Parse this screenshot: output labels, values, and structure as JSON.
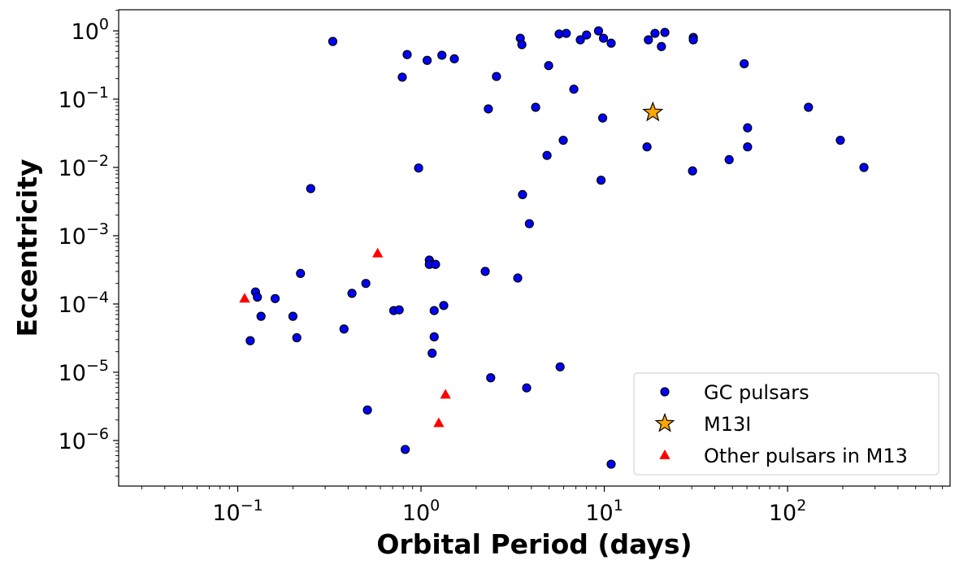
{
  "chart_data": {
    "type": "scatter",
    "title": "",
    "xlabel": "Orbital Period (days)",
    "ylabel": "Eccentricity",
    "xscale": "log",
    "yscale": "log",
    "xlim": [
      0.0224,
      770
    ],
    "ylim": [
      2.15e-07,
      2.04
    ],
    "x_ticks": [
      {
        "v": 0.1,
        "base": "10",
        "exp": "−1"
      },
      {
        "v": 1,
        "base": "10",
        "exp": "0"
      },
      {
        "v": 10,
        "base": "10",
        "exp": "1"
      },
      {
        "v": 100,
        "base": "10",
        "exp": "2"
      }
    ],
    "y_ticks": [
      {
        "v": 1e-06,
        "base": "10",
        "exp": "−6"
      },
      {
        "v": 1e-05,
        "base": "10",
        "exp": "−5"
      },
      {
        "v": 0.0001,
        "base": "10",
        "exp": "−4"
      },
      {
        "v": 0.001,
        "base": "10",
        "exp": "−3"
      },
      {
        "v": 0.01,
        "base": "10",
        "exp": "−2"
      },
      {
        "v": 0.1,
        "base": "10",
        "exp": "−1"
      },
      {
        "v": 1,
        "base": "10",
        "exp": "0"
      }
    ],
    "grid": false,
    "legend_position": "bottom-right",
    "series": [
      {
        "name": "GC pulsars",
        "marker": "circle",
        "color": "#0000ff",
        "edge": "#000000",
        "points": [
          [
            0.33,
            0.7
          ],
          [
            0.84,
            0.45
          ],
          [
            0.79,
            0.21
          ],
          [
            1.08,
            0.37
          ],
          [
            1.3,
            0.44
          ],
          [
            1.52,
            0.39
          ],
          [
            2.58,
            0.215
          ],
          [
            2.33,
            0.072
          ],
          [
            3.48,
            0.78
          ],
          [
            3.55,
            0.63
          ],
          [
            4.97,
            0.31
          ],
          [
            4.22,
            0.076
          ],
          [
            6.82,
            0.14
          ],
          [
            5.67,
            0.9
          ],
          [
            6.2,
            0.92
          ],
          [
            7.4,
            0.74
          ],
          [
            8.0,
            0.87
          ],
          [
            9.3,
            1.0
          ],
          [
            9.9,
            0.78
          ],
          [
            10.9,
            0.66
          ],
          [
            9.8,
            0.053
          ],
          [
            5.97,
            0.025
          ],
          [
            4.87,
            0.015
          ],
          [
            0.97,
            0.0098
          ],
          [
            0.25,
            0.0049
          ],
          [
            9.6,
            0.0065
          ],
          [
            3.58,
            0.004
          ],
          [
            3.9,
            0.0015
          ],
          [
            17.4,
            0.74
          ],
          [
            18.9,
            0.92
          ],
          [
            21.4,
            0.95
          ],
          [
            20.5,
            0.59
          ],
          [
            30.6,
            0.8
          ],
          [
            30.6,
            0.74
          ],
          [
            17.1,
            0.02
          ],
          [
            30.3,
            0.0089
          ],
          [
            58,
            0.33
          ],
          [
            60.5,
            0.038
          ],
          [
            60.5,
            0.02
          ],
          [
            48,
            0.013
          ],
          [
            130,
            0.076
          ],
          [
            194,
            0.025
          ],
          [
            261,
            0.01
          ],
          [
            0.117,
            2.9e-05
          ],
          [
            0.125,
            0.00015
          ],
          [
            0.128,
            0.000126
          ],
          [
            0.134,
            6.6e-05
          ],
          [
            0.16,
            0.00012
          ],
          [
            0.2,
            6.6e-05
          ],
          [
            0.21,
            3.2e-05
          ],
          [
            0.22,
            0.00028
          ],
          [
            0.38,
            4.3e-05
          ],
          [
            0.42,
            0.000143
          ],
          [
            0.5,
            0.0002
          ],
          [
            0.71,
            8e-05
          ],
          [
            0.76,
            8.2e-05
          ],
          [
            1.11,
            0.00044
          ],
          [
            1.11,
            0.00038
          ],
          [
            1.2,
            0.00038
          ],
          [
            1.18,
            8e-05
          ],
          [
            1.33,
            9.5e-05
          ],
          [
            1.18,
            3.3e-05
          ],
          [
            1.15,
            1.9e-05
          ],
          [
            2.24,
            0.0003
          ],
          [
            3.37,
            0.00024
          ],
          [
            2.4,
            8.3e-06
          ],
          [
            3.77,
            5.9e-06
          ],
          [
            5.74,
            1.2e-05
          ],
          [
            0.51,
            2.8e-06
          ],
          [
            0.82,
            7.4e-07
          ],
          [
            10.9,
            4.5e-07
          ]
        ]
      },
      {
        "name": "M13I",
        "marker": "star",
        "color": "#ffa500",
        "edge": "#000000",
        "points": [
          [
            18.4,
            0.064
          ]
        ]
      },
      {
        "name": "Other pulsars in M13",
        "marker": "triangle",
        "color": "#ff0000",
        "edge": "none",
        "points": [
          [
            0.109,
            0.00012
          ],
          [
            0.58,
            0.00055
          ],
          [
            1.36,
            4.7e-06
          ],
          [
            1.25,
            1.8e-06
          ]
        ]
      }
    ]
  }
}
